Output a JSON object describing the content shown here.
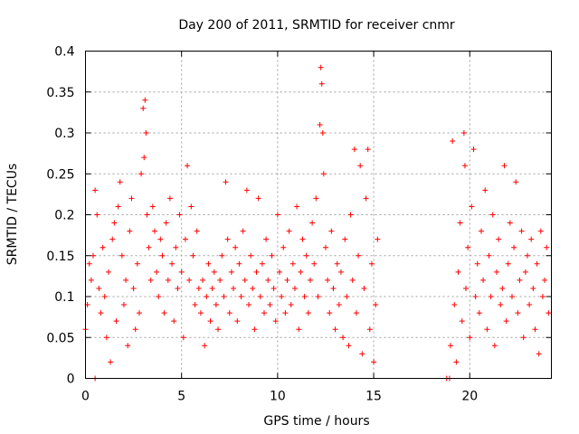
{
  "chart_data": {
    "type": "scatter",
    "title": "Day 200 of 2011, SRMTID for receiver cnmr",
    "xlabel": "GPS time / hours",
    "ylabel": "SRMTID / TECUs",
    "xlim": [
      0,
      24.25
    ],
    "ylim": [
      0,
      0.4
    ],
    "xticks": [
      0,
      5,
      10,
      15,
      20
    ],
    "xtick_labels": [
      "0",
      "5",
      "10",
      "15",
      "20"
    ],
    "yticks": [
      0,
      0.05,
      0.1,
      0.15,
      0.2,
      0.25,
      0.3,
      0.35,
      0.4
    ],
    "ytick_labels": [
      "0",
      "0.05",
      "0.1",
      "0.15",
      "0.2",
      "0.25",
      "0.3",
      "0.35",
      "0.4"
    ],
    "grid": true,
    "marker": "+",
    "marker_color": "#ff0000",
    "series": [
      {
        "name": "SRMTID",
        "points": [
          [
            0.0,
            0.06
          ],
          [
            0.1,
            0.09
          ],
          [
            0.2,
            0.14
          ],
          [
            0.3,
            0.12
          ],
          [
            0.4,
            0.15
          ],
          [
            0.5,
            0.23
          ],
          [
            0.6,
            0.2
          ],
          [
            0.7,
            0.11
          ],
          [
            0.8,
            0.08
          ],
          [
            0.9,
            0.16
          ],
          [
            1.0,
            0.1
          ],
          [
            1.1,
            0.05
          ],
          [
            1.2,
            0.13
          ],
          [
            1.3,
            0.02
          ],
          [
            1.4,
            0.17
          ],
          [
            1.5,
            0.19
          ],
          [
            1.6,
            0.07
          ],
          [
            1.7,
            0.21
          ],
          [
            1.8,
            0.24
          ],
          [
            1.9,
            0.15
          ],
          [
            2.0,
            0.09
          ],
          [
            2.1,
            0.12
          ],
          [
            2.2,
            0.04
          ],
          [
            2.3,
            0.18
          ],
          [
            2.4,
            0.22
          ],
          [
            2.5,
            0.11
          ],
          [
            2.6,
            0.06
          ],
          [
            2.7,
            0.14
          ],
          [
            2.8,
            0.08
          ],
          [
            2.9,
            0.25
          ],
          [
            3.0,
            0.33
          ],
          [
            3.05,
            0.27
          ],
          [
            3.1,
            0.34
          ],
          [
            3.15,
            0.3
          ],
          [
            3.2,
            0.2
          ],
          [
            3.3,
            0.16
          ],
          [
            3.4,
            0.12
          ],
          [
            3.5,
            0.21
          ],
          [
            3.6,
            0.18
          ],
          [
            3.7,
            0.13
          ],
          [
            3.8,
            0.1
          ],
          [
            3.9,
            0.17
          ],
          [
            4.0,
            0.15
          ],
          [
            4.1,
            0.08
          ],
          [
            4.2,
            0.19
          ],
          [
            4.3,
            0.12
          ],
          [
            4.4,
            0.22
          ],
          [
            4.5,
            0.14
          ],
          [
            4.6,
            0.07
          ],
          [
            4.7,
            0.16
          ],
          [
            4.8,
            0.11
          ],
          [
            4.9,
            0.2
          ],
          [
            5.0,
            0.13
          ],
          [
            5.1,
            0.05
          ],
          [
            5.2,
            0.17
          ],
          [
            5.3,
            0.26
          ],
          [
            5.4,
            0.12
          ],
          [
            5.5,
            0.21
          ],
          [
            5.6,
            0.15
          ],
          [
            5.7,
            0.09
          ],
          [
            5.8,
            0.18
          ],
          [
            5.9,
            0.11
          ],
          [
            6.0,
            0.08
          ],
          [
            6.1,
            0.12
          ],
          [
            6.2,
            0.04
          ],
          [
            6.3,
            0.1
          ],
          [
            6.4,
            0.14
          ],
          [
            6.5,
            0.07
          ],
          [
            6.6,
            0.11
          ],
          [
            6.7,
            0.13
          ],
          [
            6.8,
            0.09
          ],
          [
            6.9,
            0.06
          ],
          [
            7.0,
            0.12
          ],
          [
            7.1,
            0.15
          ],
          [
            7.2,
            0.1
          ],
          [
            7.3,
            0.24
          ],
          [
            7.4,
            0.17
          ],
          [
            7.5,
            0.08
          ],
          [
            7.6,
            0.13
          ],
          [
            7.7,
            0.11
          ],
          [
            7.8,
            0.16
          ],
          [
            7.9,
            0.07
          ],
          [
            8.0,
            0.14
          ],
          [
            8.1,
            0.1
          ],
          [
            8.2,
            0.18
          ],
          [
            8.3,
            0.12
          ],
          [
            8.4,
            0.23
          ],
          [
            8.5,
            0.09
          ],
          [
            8.6,
            0.15
          ],
          [
            8.7,
            0.11
          ],
          [
            8.8,
            0.06
          ],
          [
            8.9,
            0.13
          ],
          [
            9.0,
            0.22
          ],
          [
            9.1,
            0.1
          ],
          [
            9.2,
            0.14
          ],
          [
            9.3,
            0.08
          ],
          [
            9.4,
            0.17
          ],
          [
            9.5,
            0.12
          ],
          [
            9.6,
            0.09
          ],
          [
            9.7,
            0.15
          ],
          [
            9.8,
            0.11
          ],
          [
            9.9,
            0.07
          ],
          [
            10.0,
            0.2
          ],
          [
            10.1,
            0.13
          ],
          [
            10.2,
            0.1
          ],
          [
            10.3,
            0.16
          ],
          [
            10.4,
            0.08
          ],
          [
            10.5,
            0.12
          ],
          [
            10.6,
            0.18
          ],
          [
            10.7,
            0.09
          ],
          [
            10.8,
            0.14
          ],
          [
            10.9,
            0.11
          ],
          [
            11.0,
            0.21
          ],
          [
            11.1,
            0.06
          ],
          [
            11.2,
            0.13
          ],
          [
            11.3,
            0.17
          ],
          [
            11.4,
            0.1
          ],
          [
            11.5,
            0.15
          ],
          [
            11.6,
            0.08
          ],
          [
            11.7,
            0.12
          ],
          [
            11.8,
            0.19
          ],
          [
            11.9,
            0.14
          ],
          [
            12.0,
            0.22
          ],
          [
            12.1,
            0.1
          ],
          [
            12.2,
            0.31
          ],
          [
            12.25,
            0.38
          ],
          [
            12.3,
            0.36
          ],
          [
            12.35,
            0.3
          ],
          [
            12.4,
            0.25
          ],
          [
            12.5,
            0.16
          ],
          [
            12.6,
            0.12
          ],
          [
            12.7,
            0.08
          ],
          [
            12.8,
            0.18
          ],
          [
            12.9,
            0.11
          ],
          [
            13.0,
            0.06
          ],
          [
            13.1,
            0.14
          ],
          [
            13.2,
            0.09
          ],
          [
            13.3,
            0.13
          ],
          [
            13.4,
            0.05
          ],
          [
            13.5,
            0.17
          ],
          [
            13.6,
            0.1
          ],
          [
            13.7,
            0.04
          ],
          [
            13.8,
            0.2
          ],
          [
            13.9,
            0.12
          ],
          [
            14.0,
            0.28
          ],
          [
            14.1,
            0.08
          ],
          [
            14.2,
            0.15
          ],
          [
            14.3,
            0.26
          ],
          [
            14.4,
            0.03
          ],
          [
            14.5,
            0.11
          ],
          [
            14.6,
            0.22
          ],
          [
            14.7,
            0.28
          ],
          [
            14.8,
            0.06
          ],
          [
            14.9,
            0.14
          ],
          [
            15.0,
            0.02
          ],
          [
            15.1,
            0.09
          ],
          [
            15.2,
            0.17
          ],
          [
            0.5,
            0.0
          ],
          [
            18.8,
            0.0
          ],
          [
            18.95,
            0.0
          ],
          [
            19.0,
            0.04
          ],
          [
            19.1,
            0.29
          ],
          [
            19.2,
            0.09
          ],
          [
            19.3,
            0.02
          ],
          [
            19.4,
            0.13
          ],
          [
            19.5,
            0.19
          ],
          [
            19.6,
            0.07
          ],
          [
            19.7,
            0.3
          ],
          [
            19.75,
            0.26
          ],
          [
            19.8,
            0.11
          ],
          [
            19.9,
            0.16
          ],
          [
            20.0,
            0.05
          ],
          [
            20.1,
            0.21
          ],
          [
            20.2,
            0.28
          ],
          [
            20.3,
            0.1
          ],
          [
            20.4,
            0.14
          ],
          [
            20.5,
            0.08
          ],
          [
            20.6,
            0.18
          ],
          [
            20.7,
            0.12
          ],
          [
            20.8,
            0.23
          ],
          [
            20.9,
            0.06
          ],
          [
            21.0,
            0.15
          ],
          [
            21.1,
            0.1
          ],
          [
            21.2,
            0.2
          ],
          [
            21.3,
            0.04
          ],
          [
            21.4,
            0.13
          ],
          [
            21.5,
            0.17
          ],
          [
            21.6,
            0.09
          ],
          [
            21.7,
            0.11
          ],
          [
            21.8,
            0.26
          ],
          [
            21.9,
            0.07
          ],
          [
            22.0,
            0.14
          ],
          [
            22.1,
            0.19
          ],
          [
            22.2,
            0.1
          ],
          [
            22.3,
            0.16
          ],
          [
            22.4,
            0.24
          ],
          [
            22.5,
            0.08
          ],
          [
            22.6,
            0.12
          ],
          [
            22.7,
            0.18
          ],
          [
            22.8,
            0.05
          ],
          [
            22.9,
            0.13
          ],
          [
            23.0,
            0.15
          ],
          [
            23.1,
            0.09
          ],
          [
            23.2,
            0.17
          ],
          [
            23.3,
            0.11
          ],
          [
            23.4,
            0.06
          ],
          [
            23.5,
            0.14
          ],
          [
            23.6,
            0.03
          ],
          [
            23.7,
            0.18
          ],
          [
            23.8,
            0.1
          ],
          [
            23.9,
            0.12
          ],
          [
            24.0,
            0.16
          ],
          [
            24.1,
            0.08
          ]
        ]
      }
    ]
  }
}
